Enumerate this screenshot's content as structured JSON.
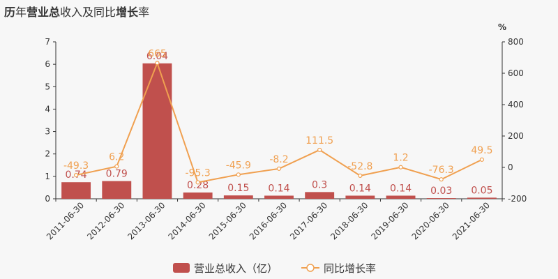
{
  "title_parts": [
    {
      "text": "历",
      "bold": true
    },
    {
      "text": "年",
      "bold": false
    },
    {
      "text": "营业总",
      "bold": true
    },
    {
      "text": "收入及同比",
      "bold": false
    },
    {
      "text": "增长",
      "bold": true
    },
    {
      "text": "率",
      "bold": false
    }
  ],
  "colors": {
    "bar": "#c0504d",
    "line": "#f0a050",
    "axis": "#333333",
    "bar_label": "#c0504d",
    "line_label": "#f0a050"
  },
  "chart_data": {
    "type": "bar+line",
    "categories": [
      "2011-06-30",
      "2012-06-30",
      "2013-06-30",
      "2014-06-30",
      "2015-06-30",
      "2016-06-30",
      "2017-06-30",
      "2018-06-30",
      "2019-06-30",
      "2020-06-30",
      "2021-06-30"
    ],
    "series": [
      {
        "name": "营业总收入（亿）",
        "type": "bar",
        "axis": "left",
        "values": [
          0.74,
          0.79,
          6.04,
          0.28,
          0.15,
          0.14,
          0.3,
          0.14,
          0.14,
          0.03,
          0.05
        ],
        "labels": [
          "0.74",
          "0.79",
          "6.04",
          "0.28",
          "0.15",
          "0.14",
          "0.3",
          "0.14",
          "0.14",
          "0.03",
          "0.05"
        ]
      },
      {
        "name": "同比增长率",
        "type": "line",
        "axis": "right",
        "values": [
          -49.3,
          6.2,
          665,
          -95.3,
          -45.9,
          -8.2,
          111.5,
          -52.8,
          1.2,
          -76.3,
          49.5
        ],
        "labels": [
          "-49.3",
          "6.2",
          "665",
          "-95.3",
          "-45.9",
          "-8.2",
          "111.5",
          "-52.8",
          "1.2",
          "-76.3",
          "49.5"
        ]
      }
    ],
    "y_left": {
      "min": 0,
      "max": 7,
      "ticks": [
        "0",
        "1",
        "2",
        "3",
        "4",
        "5",
        "6",
        "7"
      ]
    },
    "y_right": {
      "min": -200,
      "max": 800,
      "ticks": [
        "-200",
        "0",
        "200",
        "400",
        "600",
        "800"
      ],
      "unit": "%"
    },
    "legend": {
      "position": "bottom-center"
    }
  }
}
